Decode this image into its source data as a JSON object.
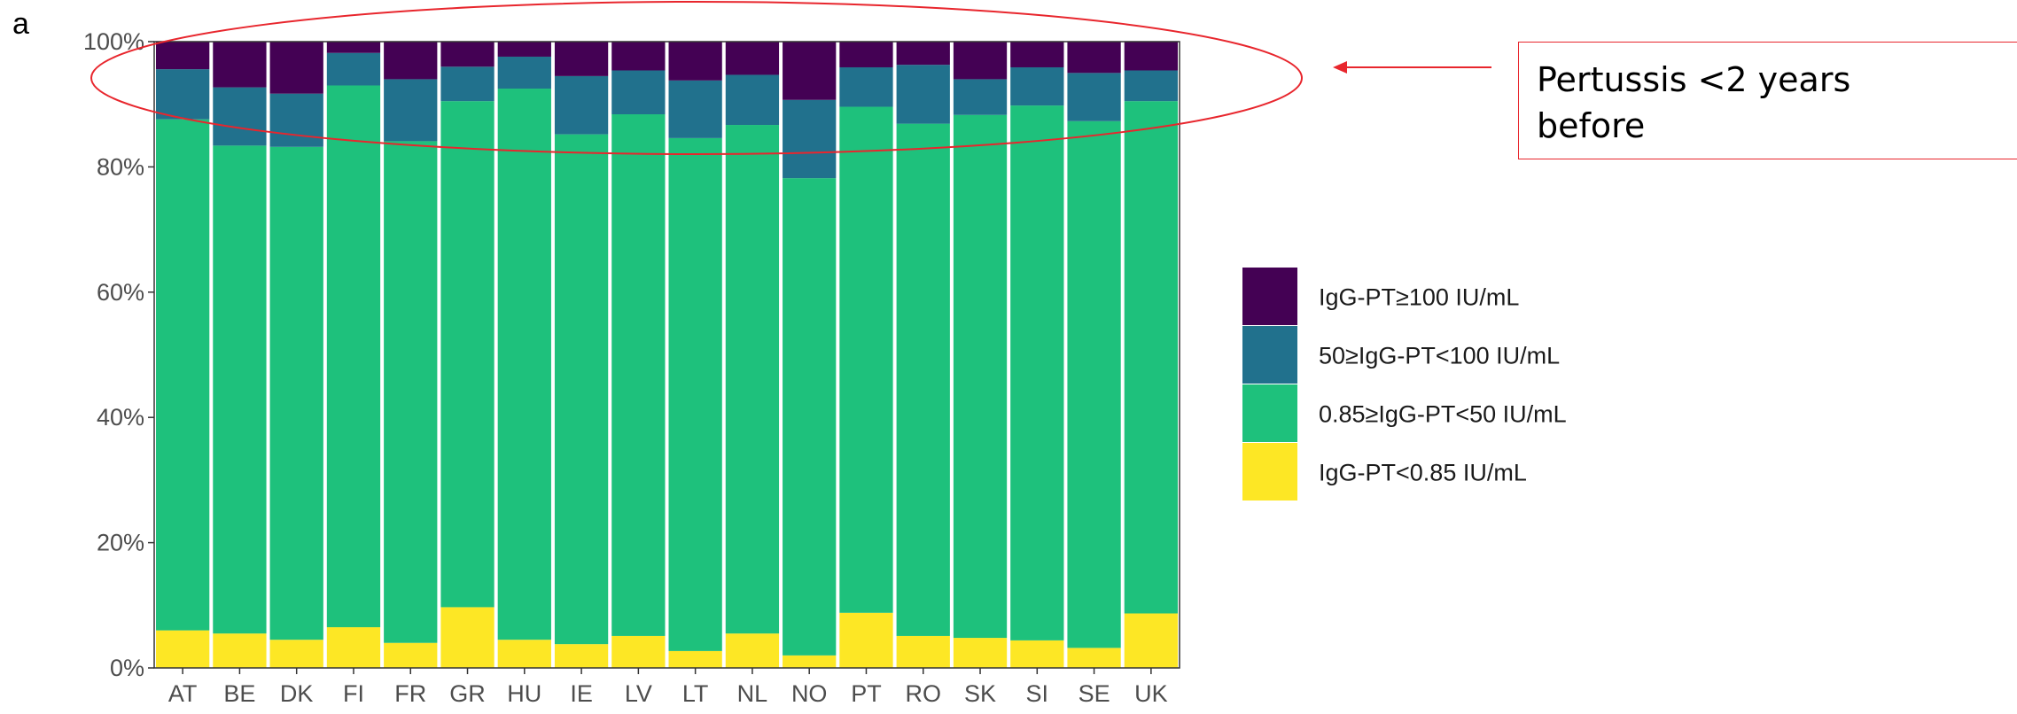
{
  "panel_label": "a",
  "annotation": {
    "line1": "Pertussis <2 years",
    "line2": "before"
  },
  "colors": {
    "igg_ge100": "#440154",
    "igg_50_100": "#21718d",
    "igg_085_50": "#1ec17c",
    "igg_lt085": "#fde725",
    "highlight": "#e8262d"
  },
  "chart_data": {
    "type": "bar",
    "stacked": true,
    "orientation": "vertical",
    "categories": [
      "AT",
      "BE",
      "DK",
      "FI",
      "FR",
      "GR",
      "HU",
      "IE",
      "LV",
      "LT",
      "NL",
      "NO",
      "PT",
      "RO",
      "SK",
      "SI",
      "SE",
      "UK"
    ],
    "series": [
      {
        "name": "IgG-PT<0.85 IU/mL",
        "color": "#fde725",
        "values": [
          6.0,
          5.5,
          4.5,
          6.5,
          4.0,
          9.7,
          4.5,
          3.8,
          5.1,
          2.7,
          5.5,
          2.0,
          8.8,
          5.1,
          4.8,
          4.4,
          3.2,
          8.7
        ]
      },
      {
        "name": "0.85≥IgG-PT<50 IU/mL",
        "color": "#1ec17c",
        "values": [
          81.6,
          77.9,
          78.7,
          86.5,
          80.1,
          80.8,
          88.0,
          81.4,
          83.3,
          81.9,
          81.2,
          76.2,
          80.8,
          81.8,
          83.5,
          85.4,
          84.1,
          81.8
        ]
      },
      {
        "name": "50≥IgG-PT<100 IU/mL",
        "color": "#21718d",
        "values": [
          8.0,
          9.3,
          8.5,
          5.2,
          9.9,
          5.5,
          5.1,
          9.3,
          7.0,
          9.2,
          8.0,
          12.5,
          6.3,
          9.4,
          5.7,
          6.1,
          7.7,
          4.9
        ]
      },
      {
        "name": "IgG-PT≥100 IU/mL",
        "color": "#440154",
        "values": [
          4.4,
          7.3,
          8.3,
          1.8,
          6.0,
          4.0,
          2.4,
          5.5,
          4.6,
          6.2,
          5.3,
          9.3,
          4.1,
          3.7,
          6.0,
          4.1,
          5.0,
          4.6
        ]
      }
    ],
    "yaxis": {
      "ylim": [
        0,
        100
      ],
      "ticks": [
        0,
        20,
        40,
        60,
        80,
        100
      ],
      "tick_labels": [
        "0%",
        "20%",
        "40%",
        "60%",
        "80%",
        "100%"
      ]
    },
    "xlabel": "",
    "ylabel": "",
    "legend": {
      "position": "right",
      "entries": [
        "IgG-PT≥100 IU/mL",
        "50≥IgG-PT<100 IU/mL",
        "0.85≥IgG-PT<50 IU/mL",
        "IgG-PT<0.85 IU/mL"
      ]
    },
    "grid": false
  }
}
